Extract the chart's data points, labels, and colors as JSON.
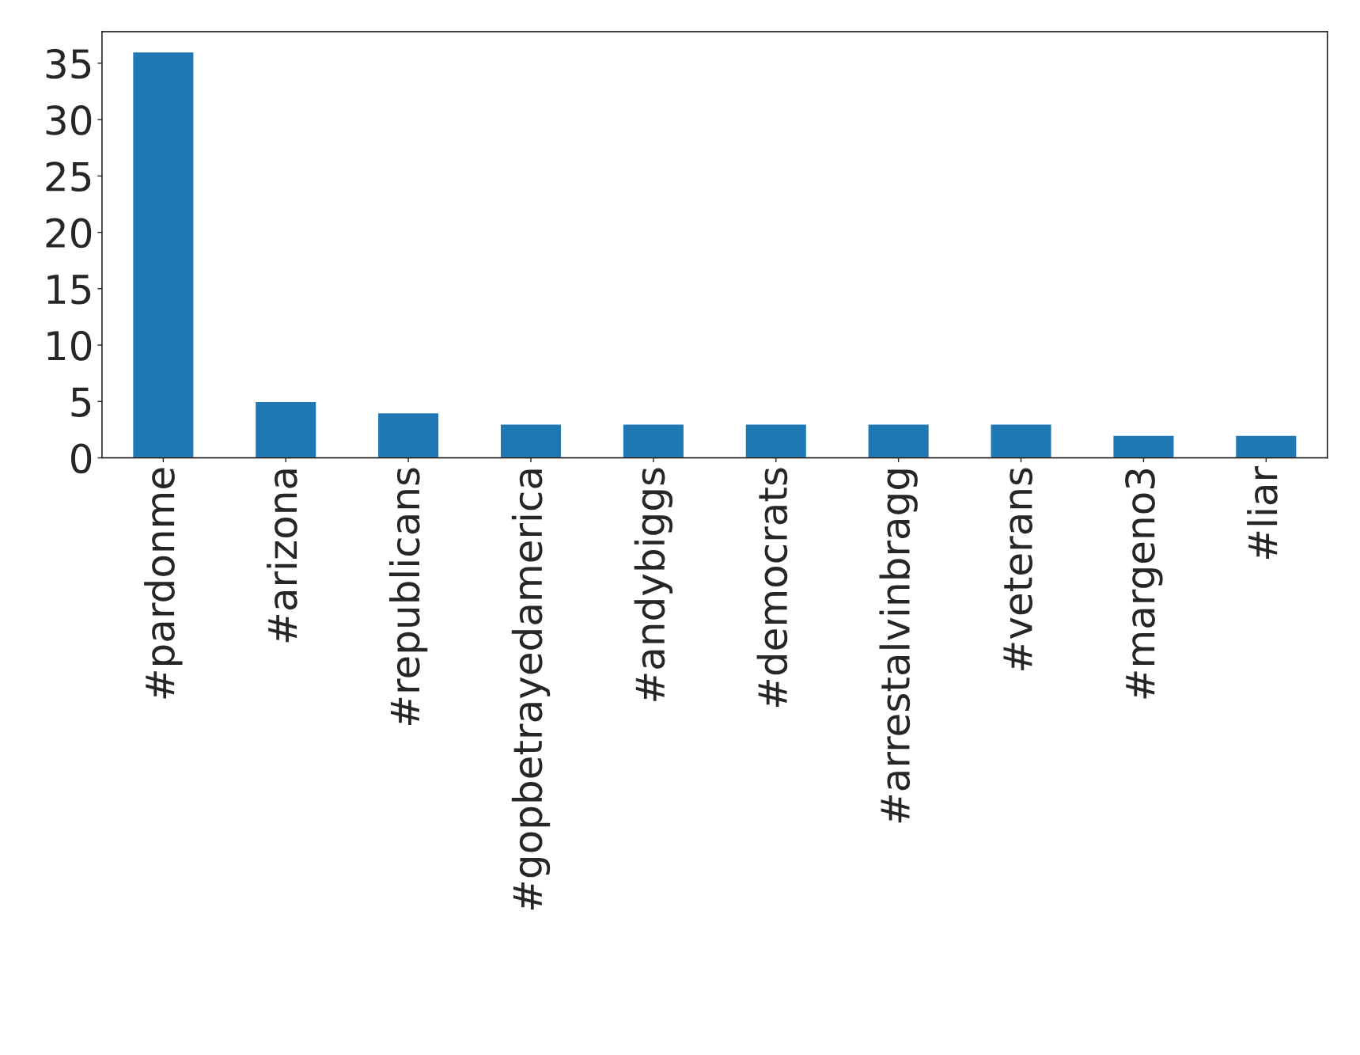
{
  "chart_data": {
    "type": "bar",
    "categories": [
      "#pardonme",
      "#arizona",
      "#republicans",
      "#gopbetrayedamerica",
      "#andybiggs",
      "#democrats",
      "#arrestalvinbragg",
      "#veterans",
      "#margeno3",
      "#liar"
    ],
    "values": [
      36,
      5,
      4,
      3,
      3,
      3,
      3,
      3,
      2,
      2
    ],
    "color": "#1f77b4",
    "ylim": [
      0,
      37.8
    ],
    "yticks": [
      0,
      5,
      10,
      15,
      20,
      25,
      30,
      35
    ],
    "grid": false,
    "legend": false
  }
}
